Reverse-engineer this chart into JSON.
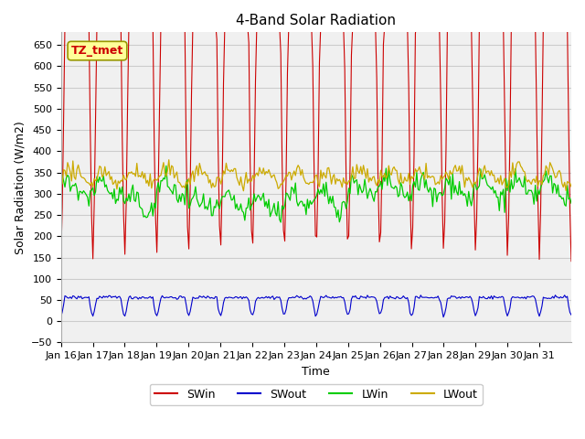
{
  "title": "4-Band Solar Radiation",
  "xlabel": "Time",
  "ylabel": "Solar Radiation (W/m2)",
  "annotation": "TZ_tmet",
  "annotation_color": "#cc0000",
  "annotation_bg": "#ffff99",
  "ylim": [
    -50,
    680
  ],
  "yticks": [
    -50,
    0,
    50,
    100,
    150,
    200,
    250,
    300,
    350,
    400,
    450,
    500,
    550,
    600,
    650
  ],
  "xtick_labels": [
    "Jan 16",
    "Jan 17",
    "Jan 18",
    "Jan 19",
    "Jan 20",
    "Jan 21",
    "Jan 22",
    "Jan 23",
    "Jan 24",
    "Jan 25",
    "Jan 26",
    "Jan 27",
    "Jan 28",
    "Jan 29",
    "Jan 30",
    "Jan 31"
  ],
  "colors": {
    "SWin": "#cc0000",
    "SWout": "#0000cc",
    "LWin": "#00cc00",
    "LWout": "#ccaa00"
  },
  "legend_labels": [
    "SWin",
    "SWout",
    "LWin",
    "LWout"
  ],
  "grid_color": "#cccccc",
  "bg_color": "#f0f0f0"
}
